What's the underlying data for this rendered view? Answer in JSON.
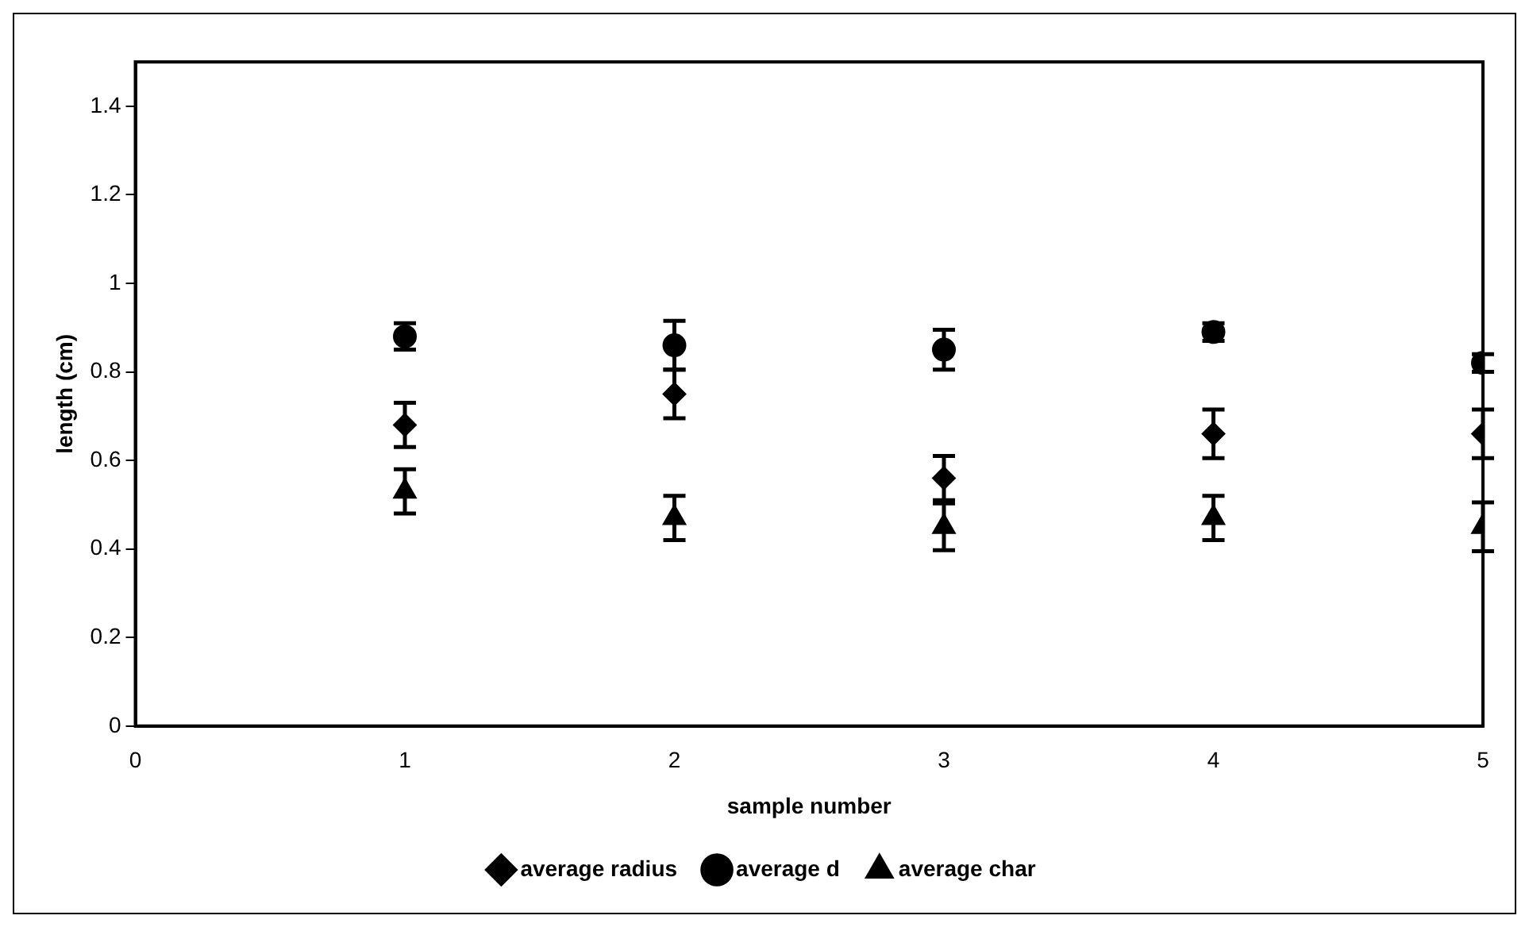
{
  "chart_data": {
    "type": "scatter",
    "xlabel": "sample number",
    "ylabel": "length (cm)",
    "x": [
      1,
      2,
      3,
      4,
      5
    ],
    "series": [
      {
        "name": "average radius",
        "color": "#000000",
        "marker": "diamond",
        "values": [
          0.68,
          0.75,
          0.56,
          0.66,
          0.66
        ],
        "errors": [
          0.05,
          0.055,
          0.05,
          0.055,
          0.055
        ]
      },
      {
        "name": "average d",
        "color": "#000000",
        "marker": "circle",
        "values": [
          0.88,
          0.86,
          0.85,
          0.89,
          0.82
        ],
        "errors": [
          0.03,
          0.055,
          0.045,
          0.02,
          0.02
        ]
      },
      {
        "name": "average char",
        "color": "#000000",
        "marker": "triangle",
        "values": [
          0.53,
          0.47,
          0.45,
          0.47,
          0.45
        ],
        "errors": [
          0.05,
          0.05,
          0.053,
          0.05,
          0.055
        ]
      }
    ],
    "xlim": [
      0,
      5
    ],
    "xticks": [
      0,
      1,
      2,
      3,
      4,
      5
    ],
    "ylim": [
      0,
      1.5
    ],
    "yticks": [
      0,
      0.2,
      0.4,
      0.6,
      0.8,
      1,
      1.2,
      1.4
    ],
    "grid": false,
    "legend": "bottom"
  }
}
